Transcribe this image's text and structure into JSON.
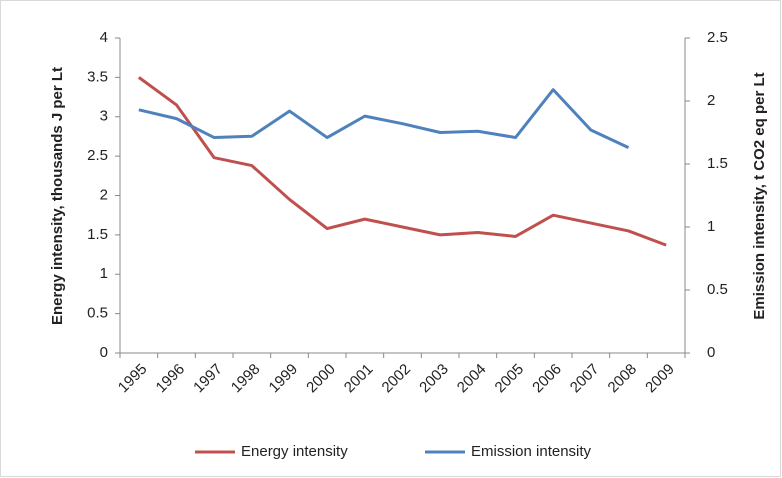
{
  "chart_data": {
    "type": "line",
    "categories": [
      "1995",
      "1996",
      "1997",
      "1998",
      "1999",
      "2000",
      "2001",
      "2002",
      "2003",
      "2004",
      "2005",
      "2006",
      "2007",
      "2008",
      "2009"
    ],
    "series": [
      {
        "name": "Energy intensity",
        "color": "#c0504d",
        "values": [
          3.5,
          3.15,
          2.48,
          2.38,
          1.95,
          1.58,
          1.7,
          1.6,
          1.5,
          1.53,
          1.48,
          1.75,
          1.65,
          1.55,
          1.37
        ]
      },
      {
        "name": "Emission intensity",
        "color": "#4f81bd",
        "axis": "y2",
        "values": [
          1.93,
          1.86,
          1.71,
          1.72,
          1.92,
          1.71,
          1.88,
          1.82,
          1.75,
          1.76,
          1.71,
          2.09,
          1.77,
          1.63,
          null
        ]
      }
    ],
    "ylabel": "Energy intensity, thousands J per Lt",
    "y2label": "Emission intensity, t CO2 eq per Lt",
    "ylim": [
      0,
      4
    ],
    "yticks": [
      0,
      0.5,
      1,
      1.5,
      2,
      2.5,
      3,
      3.5,
      4
    ],
    "y2lim": [
      0,
      2.5
    ],
    "y2ticks": [
      0,
      0.5,
      1,
      1.5,
      2,
      2.5
    ],
    "grid": false,
    "legend": "bottom"
  }
}
